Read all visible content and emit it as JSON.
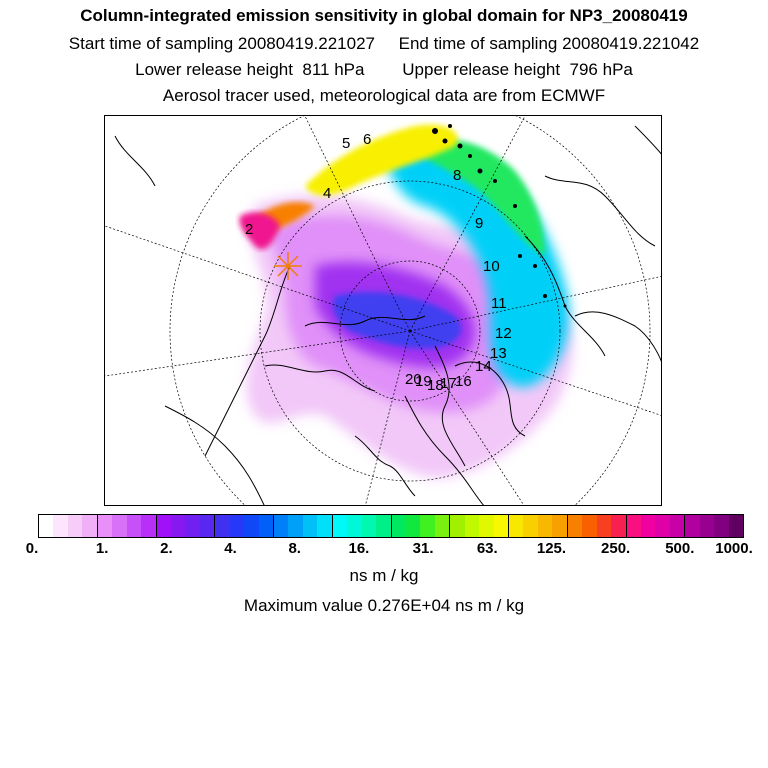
{
  "title": {
    "line1": "Column-integrated emission sensitivity in global domain for NP3_20080419",
    "line2": "Start time of sampling 20080419.221027     End time of sampling 20080419.221042",
    "line3": "Lower release height  811 hPa        Upper release height  796 hPa",
    "line4": "Aerosol tracer used, meteorological data are from ECMWF"
  },
  "map": {
    "trajectory_labels": [
      "2",
      "4",
      "5",
      "6",
      "8",
      "9",
      "10",
      "11",
      "12",
      "13",
      "14",
      "16",
      "17",
      "18",
      "19",
      "20"
    ],
    "release_marker": "star-icon"
  },
  "colorbar": {
    "tick_labels": [
      "0.",
      "1.",
      "2.",
      "4.",
      "8.",
      "16.",
      "31.",
      "63.",
      "125.",
      "250.",
      "500.",
      "1000."
    ],
    "units": "ns m / kg",
    "colors": [
      "#ffffff",
      "#fde6fd",
      "#f8ccf8",
      "#f0b0f8",
      "#e890f8",
      "#d870f8",
      "#c850f8",
      "#b830f8",
      "#a010f8",
      "#8818f0",
      "#7020f0",
      "#5828f0",
      "#4030f0",
      "#2838f8",
      "#1048f8",
      "#0060f8",
      "#0080f8",
      "#00a0f8",
      "#00c0f8",
      "#00e0f8",
      "#00f8f8",
      "#00f8d8",
      "#00f8b0",
      "#00f088",
      "#00e860",
      "#10e840",
      "#40f020",
      "#78f010",
      "#a0f000",
      "#c0f800",
      "#e0f800",
      "#f8f800",
      "#f8e800",
      "#f8d000",
      "#f8b800",
      "#f8a000",
      "#f88000",
      "#f86000",
      "#f84020",
      "#f82050",
      "#f81080",
      "#f000a0",
      "#e000a8",
      "#c800a8",
      "#b000a0",
      "#980090",
      "#800080",
      "#600060"
    ]
  },
  "maximum": "Maximum value  0.276E+04 ns m / kg"
}
